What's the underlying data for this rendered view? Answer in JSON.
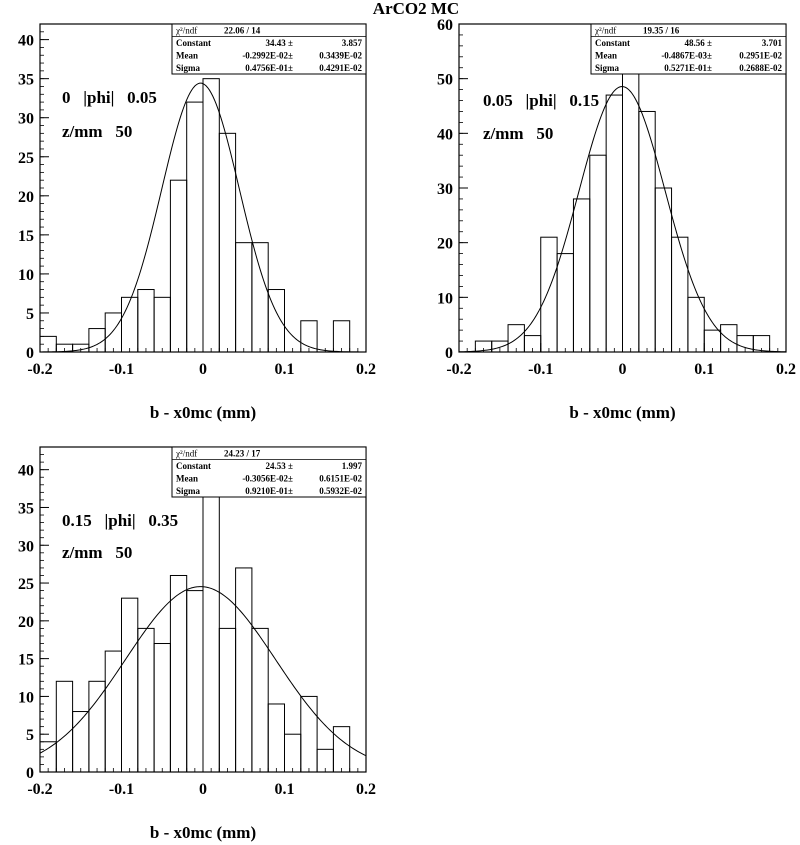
{
  "title": "ArCO2 MC",
  "chart_data": [
    {
      "type": "bar",
      "xlabel": "b - x0mc (mm)",
      "xlim": [
        -0.2,
        0.2
      ],
      "ylim": [
        0,
        42
      ],
      "xticks": [
        "-0.2",
        "-0.1",
        "0",
        "0.1",
        "0.2"
      ],
      "yticks": [
        0,
        5,
        10,
        15,
        20,
        25,
        30,
        35,
        40
      ],
      "bin_edges": [
        -0.2,
        -0.18,
        -0.16,
        -0.14,
        -0.12,
        -0.1,
        -0.08,
        -0.06,
        -0.04,
        -0.02,
        0,
        0.02,
        0.04,
        0.06,
        0.08,
        0.1,
        0.12,
        0.14,
        0.16,
        0.18,
        0.2
      ],
      "values": [
        2,
        1,
        1,
        3,
        5,
        7,
        8,
        7,
        22,
        32,
        35,
        28,
        14,
        14,
        8,
        0,
        4,
        0,
        4,
        0
      ],
      "fit": {
        "constant": 34.43,
        "mean": -0.002992,
        "sigma": 0.04756
      },
      "annotation": [
        "0   |phi|   0.05",
        "z/mm   50"
      ],
      "stats": {
        "chi2_label": "χ²/ndf",
        "chi2_value": "22.06    /   14",
        "rows": [
          {
            "label": "Constant",
            "value": "34.43 ±",
            "error": "3.857"
          },
          {
            "label": "Mean",
            "value": "-0.2992E-02±",
            "error": "0.3439E-02"
          },
          {
            "label": "Sigma",
            "value": "0.4756E-01±",
            "error": "0.4291E-02"
          }
        ]
      }
    },
    {
      "type": "bar",
      "xlabel": "b - x0mc (mm)",
      "xlim": [
        -0.2,
        0.2
      ],
      "ylim": [
        0,
        60
      ],
      "xticks": [
        "-0.2",
        "-0.1",
        "0",
        "0.1",
        "0.2"
      ],
      "yticks": [
        0,
        10,
        20,
        30,
        40,
        50,
        60
      ],
      "bin_edges": [
        -0.2,
        -0.18,
        -0.16,
        -0.14,
        -0.12,
        -0.1,
        -0.08,
        -0.06,
        -0.04,
        -0.02,
        0,
        0.02,
        0.04,
        0.06,
        0.08,
        0.1,
        0.12,
        0.14,
        0.16,
        0.18,
        0.2
      ],
      "values": [
        0,
        2,
        2,
        5,
        3,
        21,
        18,
        28,
        36,
        47,
        51,
        44,
        30,
        21,
        10,
        4,
        5,
        3,
        3,
        0
      ],
      "fit": {
        "constant": 48.56,
        "mean": -0.0004867,
        "sigma": 0.05271
      },
      "annotation": [
        "0.05   |phi|   0.15",
        "z/mm   50"
      ],
      "stats": {
        "chi2_label": "χ²/ndf",
        "chi2_value": "19.35    /   16",
        "rows": [
          {
            "label": "Constant",
            "value": "48.56 ±",
            "error": "3.701"
          },
          {
            "label": "Mean",
            "value": "-0.4867E-03±",
            "error": "0.2951E-02"
          },
          {
            "label": "Sigma",
            "value": "0.5271E-01±",
            "error": "0.2688E-02"
          }
        ]
      }
    },
    {
      "type": "bar",
      "xlabel": "b - x0mc (mm)",
      "xlim": [
        -0.2,
        0.2
      ],
      "ylim": [
        0,
        43
      ],
      "xticks": [
        "-0.2",
        "-0.1",
        "0",
        "0.1",
        "0.2"
      ],
      "yticks": [
        0,
        5,
        10,
        15,
        20,
        25,
        30,
        35,
        40
      ],
      "bin_edges": [
        -0.2,
        -0.18,
        -0.16,
        -0.14,
        -0.12,
        -0.1,
        -0.08,
        -0.06,
        -0.04,
        -0.02,
        0,
        0.02,
        0.04,
        0.06,
        0.08,
        0.1,
        0.12,
        0.14,
        0.16,
        0.18,
        0.2
      ],
      "values": [
        4,
        12,
        8,
        12,
        16,
        23,
        19,
        17,
        26,
        24,
        39,
        19,
        27,
        19,
        9,
        5,
        10,
        3,
        6,
        0
      ],
      "fit": {
        "constant": 24.53,
        "mean": -0.003056,
        "sigma": 0.0921
      },
      "annotation": [
        "0.15   |phi|   0.35",
        "z/mm   50"
      ],
      "stats": {
        "chi2_label": "χ²/ndf",
        "chi2_value": "24.23    /   17",
        "rows": [
          {
            "label": "Constant",
            "value": "24.53 ±",
            "error": "1.997"
          },
          {
            "label": "Mean",
            "value": "-0.3056E-02±",
            "error": "0.6151E-02"
          },
          {
            "label": "Sigma",
            "value": "0.9210E-01±",
            "error": "0.5932E-02"
          }
        ]
      }
    }
  ]
}
